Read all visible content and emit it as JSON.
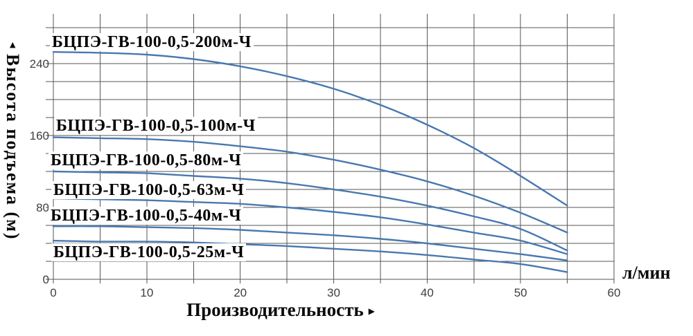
{
  "axes": {
    "y_title": "Высота подъема (м)",
    "y_axis_arrow": "▲",
    "x_title": "Производительность",
    "x_axis_arrow": "▶",
    "x_unit": "л/мин"
  },
  "chart_data": {
    "type": "line",
    "title": "",
    "xlabel": "Производительность",
    "ylabel": "Высота подъема (м)",
    "x_unit": "л/мин",
    "xlim": [
      0,
      60
    ],
    "ylim": [
      0,
      280
    ],
    "x_grid_step": 5,
    "y_grid_step": 20,
    "grid": true,
    "legend_position": "inline-labels-above-curves",
    "x_ticks": [
      0,
      10,
      20,
      30,
      40,
      50,
      60
    ],
    "y_ticks": [
      0,
      80,
      160,
      240
    ],
    "x": [
      0,
      5,
      10,
      15,
      20,
      25,
      30,
      35,
      40,
      45,
      50,
      55
    ],
    "series": [
      {
        "label": "БЦПЭ-ГВ-100-0,5-200м-Ч",
        "values": [
          253,
          252,
          250,
          245,
          237,
          226,
          212,
          194,
          172,
          146,
          115,
          82
        ]
      },
      {
        "label": "БЦПЭ-ГВ-100-0,5-100м-Ч",
        "values": [
          158,
          157,
          156,
          153,
          148,
          142,
          133,
          122,
          109,
          93,
          74,
          52
        ]
      },
      {
        "label": "БЦПЭ-ГВ-100-0,5-80м-Ч",
        "values": [
          120,
          119,
          118,
          115,
          112,
          107,
          100,
          92,
          82,
          70,
          56,
          32
        ]
      },
      {
        "label": "БЦПЭ-ГВ-100-0,5-63м-Ч",
        "values": [
          90,
          89,
          88,
          86,
          84,
          80,
          75,
          69,
          61,
          52,
          43,
          28
        ]
      },
      {
        "label": "БЦПЭ-ГВ-100-0,5-40м-Ч",
        "values": [
          59,
          59,
          58,
          57,
          55,
          52,
          49,
          45,
          40,
          34,
          28,
          21
        ]
      },
      {
        "label": "БЦПЭ-ГВ-100-0,5-25м-Ч",
        "values": [
          43,
          42,
          42,
          41,
          39,
          37,
          34,
          31,
          27,
          22,
          17,
          8
        ]
      }
    ],
    "line_color": "#4878b0",
    "grid_color": "#565656",
    "tick_color": "#3e3e3e",
    "text_color": "#000000",
    "background_color": "#ffffff"
  }
}
